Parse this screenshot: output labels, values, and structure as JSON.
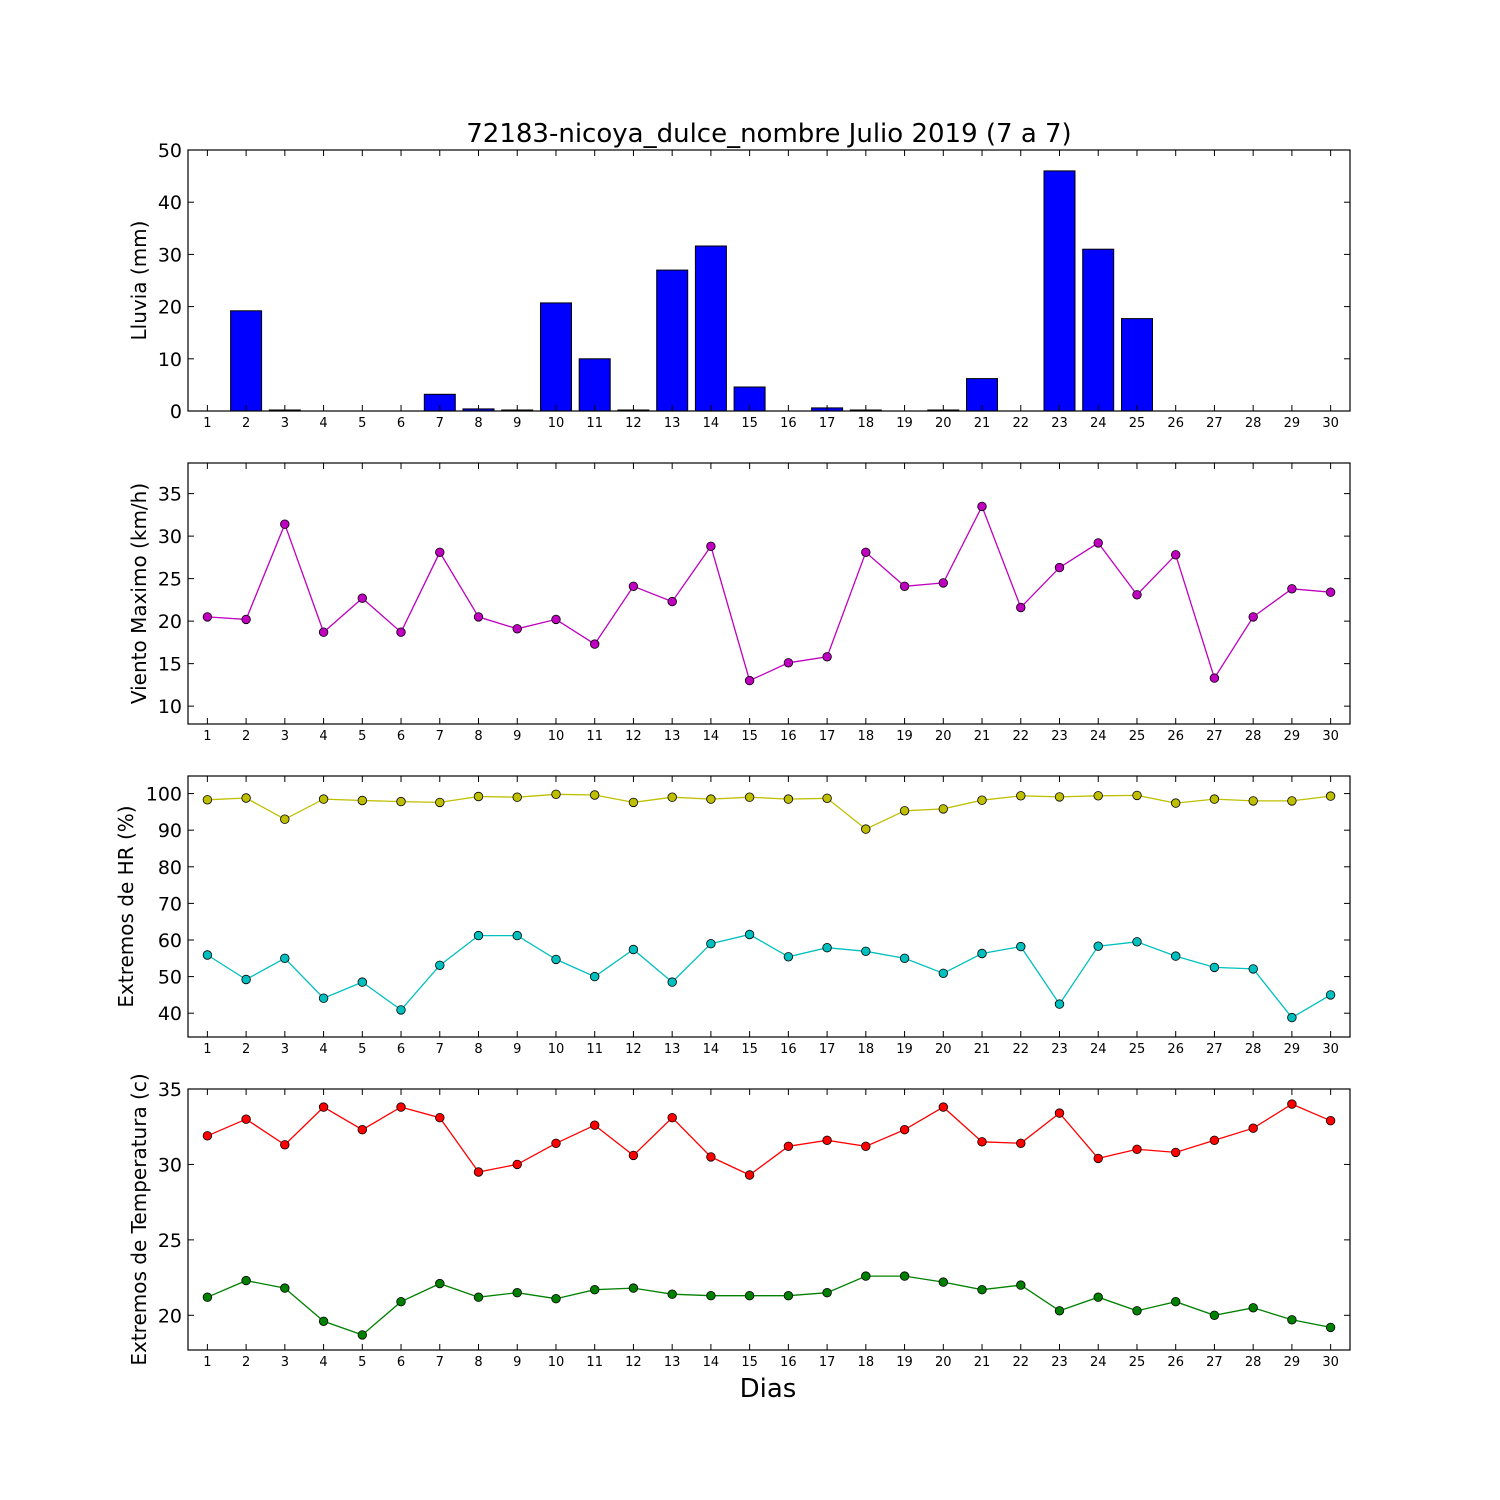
{
  "figure": {
    "title": "72183-nicoya_dulce_nombre Julio 2019  (7 a 7)",
    "xlabel": "Dias"
  },
  "chart_data": [
    {
      "type": "bar",
      "ylabel": "Lluvia (mm)",
      "x": [
        1,
        2,
        3,
        4,
        5,
        6,
        7,
        8,
        9,
        10,
        11,
        12,
        13,
        14,
        15,
        16,
        17,
        18,
        19,
        20,
        21,
        22,
        23,
        24,
        25,
        26,
        27,
        28,
        29,
        30
      ],
      "xlim": [
        0.5,
        30.5
      ],
      "ylim": [
        0,
        50
      ],
      "yticks": [
        0,
        10,
        20,
        30,
        40,
        50
      ],
      "series": [
        {
          "color": "#0000ff",
          "values": [
            0,
            19.2,
            0.2,
            0,
            0,
            0,
            3.2,
            0.4,
            0.2,
            20.7,
            10.0,
            0.2,
            27.0,
            31.6,
            4.6,
            0,
            0.6,
            0.2,
            0,
            0.2,
            6.2,
            0,
            46.0,
            31.0,
            17.7,
            0,
            0,
            0,
            0,
            0
          ]
        }
      ]
    },
    {
      "type": "line",
      "ylabel": "Viento Maximo (km/h)",
      "x": [
        1,
        2,
        3,
        4,
        5,
        6,
        7,
        8,
        9,
        10,
        11,
        12,
        13,
        14,
        15,
        16,
        17,
        18,
        19,
        20,
        21,
        22,
        23,
        24,
        25,
        26,
        27,
        28,
        29,
        30
      ],
      "xlim": [
        0.5,
        30.5
      ],
      "ylim": [
        7.9,
        38.6
      ],
      "yticks": [
        10,
        15,
        20,
        25,
        30,
        35
      ],
      "series": [
        {
          "color": "#bf00bf",
          "values": [
            20.5,
            20.2,
            31.4,
            18.7,
            22.7,
            18.7,
            28.1,
            20.5,
            19.1,
            20.2,
            17.3,
            24.1,
            22.3,
            28.8,
            13.0,
            15.1,
            15.8,
            28.1,
            24.1,
            24.5,
            33.5,
            21.6,
            26.3,
            29.2,
            23.1,
            27.8,
            13.3,
            20.5,
            23.8,
            23.4
          ]
        }
      ]
    },
    {
      "type": "line",
      "ylabel": "Extremos de HR (%)",
      "x": [
        1,
        2,
        3,
        4,
        5,
        6,
        7,
        8,
        9,
        10,
        11,
        12,
        13,
        14,
        15,
        16,
        17,
        18,
        19,
        20,
        21,
        22,
        23,
        24,
        25,
        26,
        27,
        28,
        29,
        30
      ],
      "xlim": [
        0.5,
        30.5
      ],
      "ylim": [
        33.5,
        104.8
      ],
      "yticks": [
        40,
        50,
        60,
        70,
        80,
        90,
        100
      ],
      "series": [
        {
          "color": "#bfbf00",
          "values": [
            98.3,
            98.8,
            93.0,
            98.5,
            98.1,
            97.8,
            97.6,
            99.2,
            99.0,
            99.8,
            99.6,
            97.6,
            99.0,
            98.5,
            99.0,
            98.5,
            98.7,
            90.3,
            95.3,
            95.8,
            98.2,
            99.4,
            99.1,
            99.4,
            99.5,
            97.4,
            98.5,
            98.0,
            98.0,
            99.3
          ]
        },
        {
          "color": "#00bfbf",
          "values": [
            55.9,
            49.2,
            55.0,
            44.1,
            48.5,
            40.9,
            53.1,
            61.2,
            61.2,
            54.7,
            50.0,
            57.4,
            48.5,
            59.0,
            61.5,
            55.4,
            57.9,
            56.9,
            55.0,
            50.9,
            56.3,
            58.2,
            42.5,
            58.3,
            59.5,
            55.6,
            52.5,
            52.1,
            38.8,
            45.0
          ]
        }
      ]
    },
    {
      "type": "line",
      "ylabel": "Extremos de Temperatura (c)",
      "x": [
        1,
        2,
        3,
        4,
        5,
        6,
        7,
        8,
        9,
        10,
        11,
        12,
        13,
        14,
        15,
        16,
        17,
        18,
        19,
        20,
        21,
        22,
        23,
        24,
        25,
        26,
        27,
        28,
        29,
        30
      ],
      "xlim": [
        0.5,
        30.5
      ],
      "ylim": [
        17.7,
        35.0
      ],
      "yticks": [
        20,
        25,
        30,
        35
      ],
      "series": [
        {
          "color": "#ff0000",
          "values": [
            31.9,
            33.0,
            31.3,
            33.8,
            32.3,
            33.8,
            33.1,
            29.5,
            30.0,
            31.4,
            32.6,
            30.6,
            33.1,
            30.5,
            29.3,
            31.2,
            31.6,
            31.2,
            32.3,
            33.8,
            31.5,
            31.4,
            33.4,
            30.4,
            31.0,
            30.8,
            31.6,
            32.4,
            34.0,
            32.9
          ]
        },
        {
          "color": "#008000",
          "values": [
            21.2,
            22.3,
            21.8,
            19.6,
            18.7,
            20.9,
            22.1,
            21.2,
            21.5,
            21.1,
            21.7,
            21.8,
            21.4,
            21.3,
            21.3,
            21.3,
            21.5,
            22.6,
            22.6,
            22.2,
            21.7,
            22.0,
            20.3,
            21.2,
            20.3,
            20.9,
            20.0,
            20.5,
            19.7,
            19.2
          ]
        }
      ]
    }
  ]
}
